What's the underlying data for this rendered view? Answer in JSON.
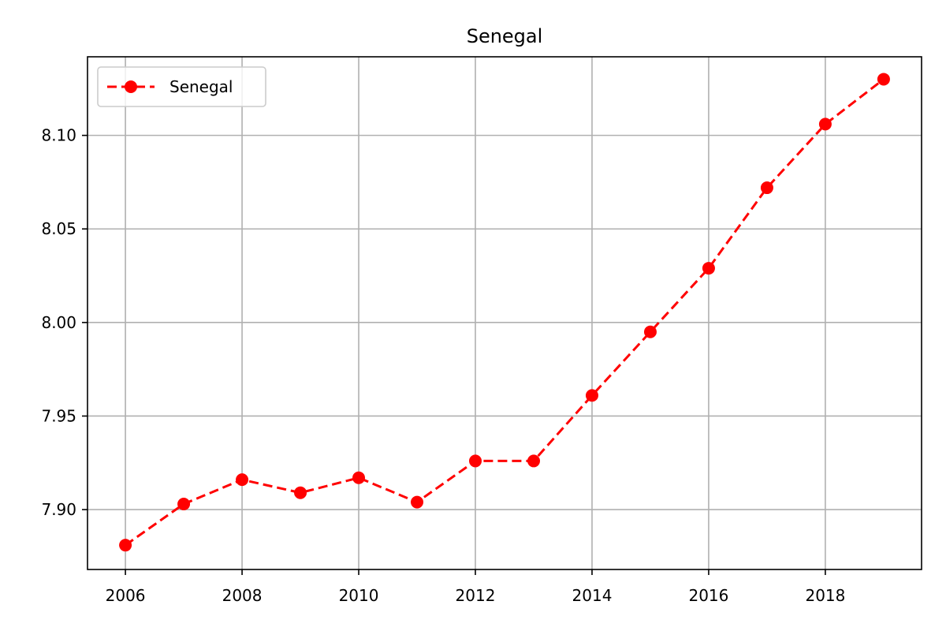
{
  "chart_data": {
    "type": "line",
    "title": "Senegal",
    "xlabel": "",
    "ylabel": "",
    "x": [
      2006,
      2007,
      2008,
      2009,
      2010,
      2011,
      2012,
      2013,
      2014,
      2015,
      2016,
      2017,
      2018,
      2019
    ],
    "series": [
      {
        "name": "Senegal",
        "values": [
          7.881,
          7.903,
          7.916,
          7.909,
          7.917,
          7.904,
          7.926,
          7.926,
          7.961,
          7.995,
          8.029,
          8.072,
          8.106,
          8.13
        ],
        "color": "#ff0000",
        "line_style": "dashed",
        "marker": "circle"
      }
    ],
    "xlim": [
      2005.35,
      2019.65
    ],
    "ylim": [
      7.868,
      8.142
    ],
    "xticks": [
      2006,
      2008,
      2010,
      2012,
      2014,
      2016,
      2018
    ],
    "xtick_labels": [
      "2006",
      "2008",
      "2010",
      "2012",
      "2014",
      "2016",
      "2018"
    ],
    "yticks": [
      7.9,
      7.95,
      8.0,
      8.05,
      8.1
    ],
    "ytick_labels": [
      "7.90",
      "7.95",
      "8.00",
      "8.05",
      "8.10"
    ],
    "grid": true,
    "legend": {
      "placement": "top-left",
      "entries": [
        "Senegal"
      ]
    }
  }
}
